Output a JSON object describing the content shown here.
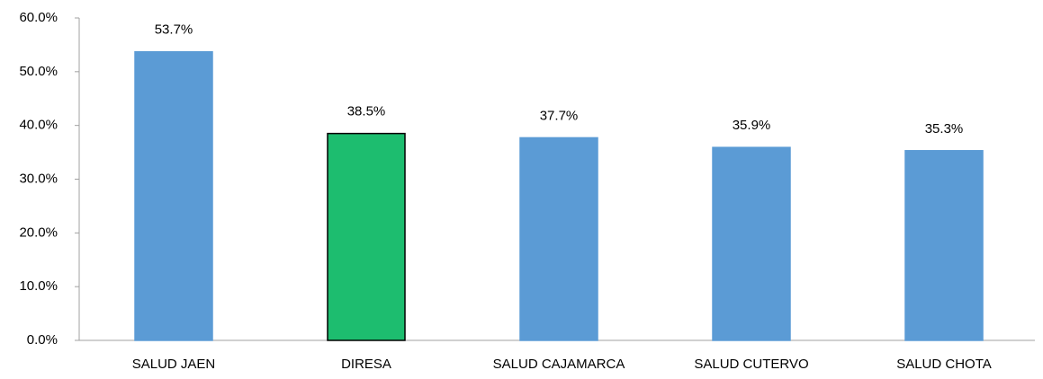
{
  "chart_data": {
    "type": "bar",
    "categories": [
      "SALUD JAEN",
      "DIRESA",
      "SALUD CAJAMARCA",
      "SALUD CUTERVO",
      "SALUD CHOTA"
    ],
    "values": [
      53.7,
      38.5,
      37.7,
      35.9,
      35.3
    ],
    "value_labels": [
      "53.7%",
      "38.5%",
      "37.7%",
      "35.9%",
      "35.3%"
    ],
    "colors": [
      "#5b9bd5",
      "#1dbd6f",
      "#5b9bd5",
      "#5b9bd5",
      "#5b9bd5"
    ],
    "edgecolors": [
      "#5b9bd5",
      "#000000",
      "#5b9bd5",
      "#5b9bd5",
      "#5b9bd5"
    ],
    "ylim": [
      0,
      60
    ],
    "yticks": [
      {
        "value": 0,
        "label": "0.0%"
      },
      {
        "value": 10,
        "label": "10.0%"
      },
      {
        "value": 20,
        "label": "20.0%"
      },
      {
        "value": 30,
        "label": "30.0%"
      },
      {
        "value": 40,
        "label": "40.0%"
      },
      {
        "value": 50,
        "label": "50.0%"
      },
      {
        "value": 60,
        "label": "60.0%"
      }
    ],
    "grid": false
  }
}
